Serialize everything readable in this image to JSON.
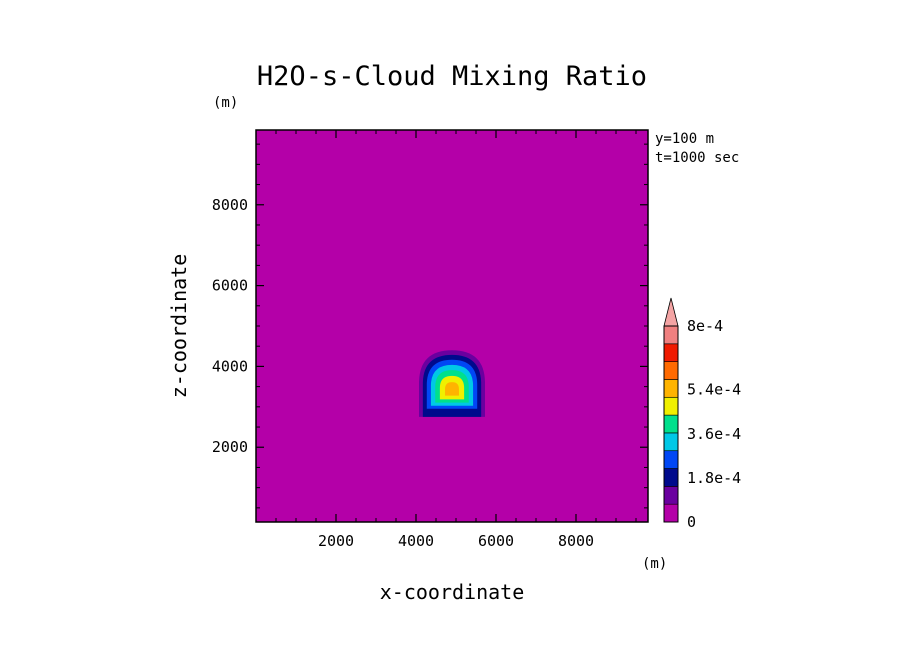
{
  "chart_data": {
    "type": "heatmap",
    "title": "H2O-s-Cloud Mixing Ratio",
    "xlabel": "x-coordinate",
    "ylabel": "z-coordinate",
    "x_unit": "(m)",
    "y_unit": "(m)",
    "xlim": [
      0,
      9800
    ],
    "ylim": [
      150,
      9850
    ],
    "x_ticks": [
      2000,
      4000,
      6000,
      8000
    ],
    "y_ticks": [
      2000,
      4000,
      6000,
      8000
    ],
    "x_tick_labels": [
      "2000",
      "4000",
      "6000",
      "8000"
    ],
    "y_tick_labels": [
      "2000",
      "4000",
      "6000",
      "8000"
    ],
    "annotations": [
      "y=100 m",
      "t=1000 sec"
    ],
    "background_level": 0,
    "cloud": {
      "center_x": 4900,
      "center_z": 3400,
      "base_z": 2750,
      "top_z": 4400,
      "left_x": 4100,
      "right_x": 5750,
      "peak_value": 0.00063
    },
    "colorbar": {
      "levels": [
        0,
        9e-05,
        0.00018,
        0.00027,
        0.00036,
        0.00045,
        0.00054,
        0.00063,
        0.00072,
        0.0008
      ],
      "tick_labels": [
        "0",
        "1.8e-4",
        "3.6e-4",
        "5.4e-4",
        "8e-4"
      ],
      "colors": [
        "#b400a8",
        "#6a009f",
        "#000a8c",
        "#0047f5",
        "#00c8e6",
        "#00e08c",
        "#f0f000",
        "#ffb400",
        "#ff6a00",
        "#f01a00",
        "#f08080"
      ],
      "over_color": "#f4a4a4"
    }
  }
}
